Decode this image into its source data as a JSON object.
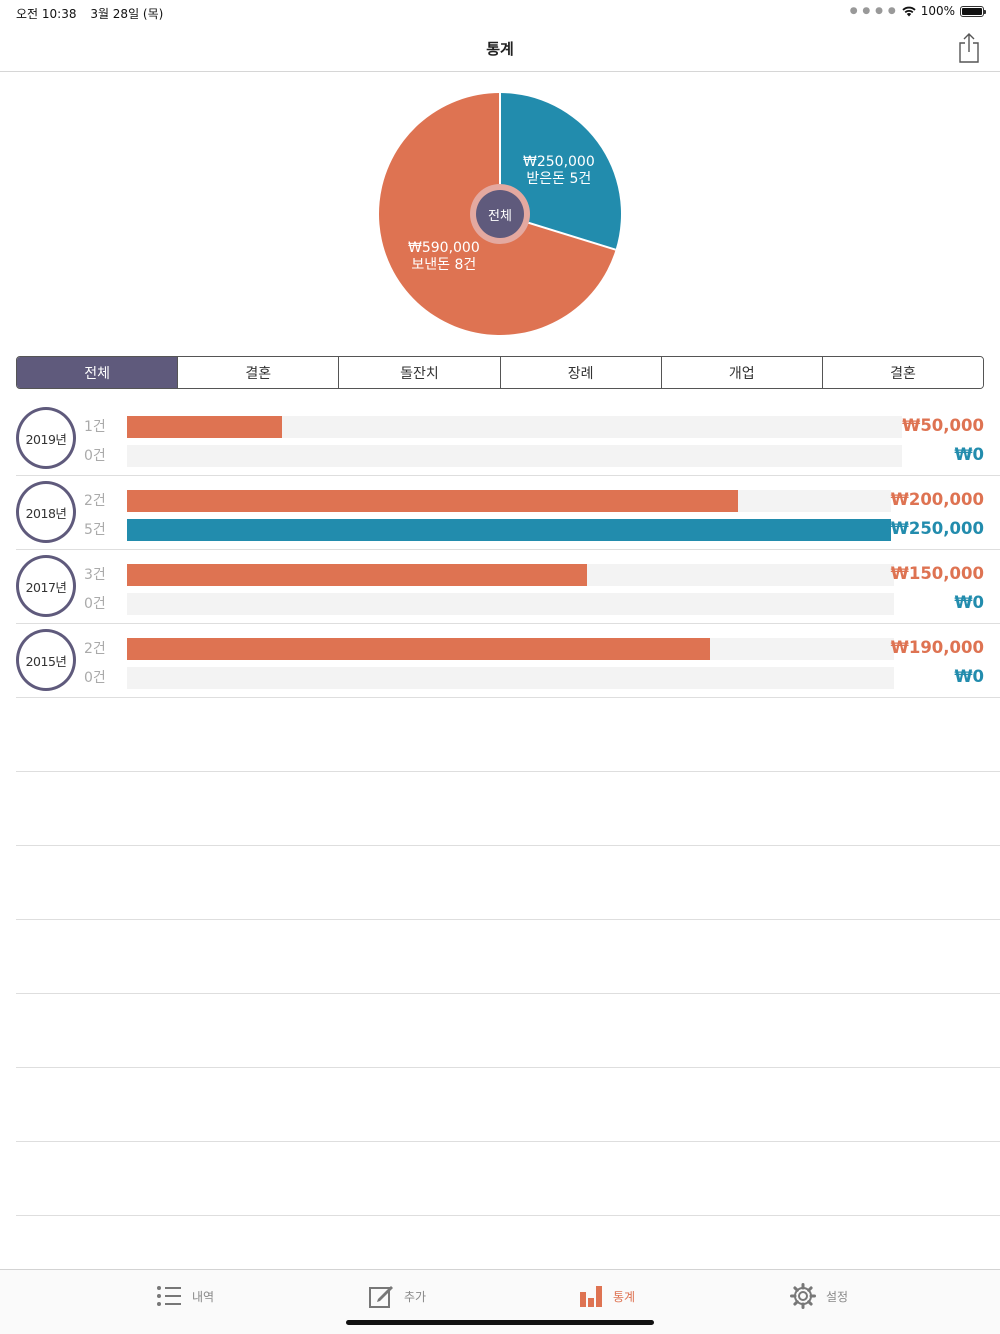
{
  "status_bar": {
    "time": "오전 10:38",
    "date": "3월 28일 (목)",
    "battery": "100%"
  },
  "nav": {
    "title": "통계"
  },
  "pie": {
    "center_label": "전체",
    "received": {
      "amount": "₩250,000",
      "caption": "받은돈 5건",
      "value": 250000
    },
    "sent": {
      "amount": "₩590,000",
      "caption": "보낸돈 8건",
      "value": 590000
    }
  },
  "segments": [
    "전체",
    "결혼",
    "돌잔치",
    "장례",
    "개업",
    "결혼"
  ],
  "years": [
    {
      "year": "2019년",
      "sent_count": "1건",
      "recv_count": "0건",
      "sent_amount": "₩50,000",
      "recv_amount": "₩0",
      "sent_value": 50000,
      "recv_value": 0
    },
    {
      "year": "2018년",
      "sent_count": "2건",
      "recv_count": "5건",
      "sent_amount": "₩200,000",
      "recv_amount": "₩250,000",
      "sent_value": 200000,
      "recv_value": 250000
    },
    {
      "year": "2017년",
      "sent_count": "3건",
      "recv_count": "0건",
      "sent_amount": "₩150,000",
      "recv_amount": "₩0",
      "sent_value": 150000,
      "recv_value": 0
    },
    {
      "year": "2015년",
      "sent_count": "2건",
      "recv_count": "0건",
      "sent_amount": "₩190,000",
      "recv_amount": "₩0",
      "sent_value": 190000,
      "recv_value": 0
    }
  ],
  "tabs": [
    {
      "label": "내역",
      "icon": "list-icon"
    },
    {
      "label": "추가",
      "icon": "compose-icon"
    },
    {
      "label": "통계",
      "icon": "bar-chart-icon"
    },
    {
      "label": "설정",
      "icon": "gear-icon"
    }
  ],
  "colors": {
    "accent": "#5f5a7c",
    "sent": "#de7352",
    "received": "#228cad"
  }
}
